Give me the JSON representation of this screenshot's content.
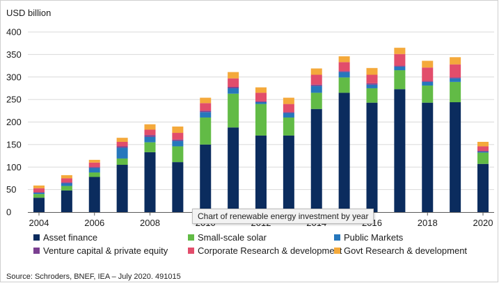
{
  "chart_data": {
    "type": "bar",
    "stacked": true,
    "ylabel": "USD billion",
    "xlabel": "",
    "ylim": [
      0,
      400
    ],
    "yticks": [
      0,
      50,
      100,
      150,
      200,
      250,
      300,
      350,
      400
    ],
    "categories": [
      "2004",
      "2005",
      "2006",
      "2007",
      "2008",
      "2009",
      "2010",
      "2011",
      "2012",
      "2013",
      "2014",
      "2015",
      "2016",
      "2017",
      "2018",
      "2019",
      "2020"
    ],
    "x_tick_labels": [
      "2004",
      "",
      "2006",
      "",
      "2008",
      "",
      "2010",
      "",
      "2012",
      "",
      "2014",
      "",
      "2016",
      "",
      "2018",
      "",
      "2020"
    ],
    "series": [
      {
        "name": "Asset finance",
        "color": "#0b2c5e",
        "values": [
          32,
          48,
          78,
          105,
          133,
          111,
          150,
          188,
          170,
          170,
          229,
          265,
          243,
          273,
          243,
          244,
          107
        ]
      },
      {
        "name": "Small-scale solar",
        "color": "#62bb46",
        "values": [
          8,
          10,
          10,
          14,
          22,
          35,
          60,
          75,
          70,
          40,
          36,
          34,
          32,
          42,
          38,
          45,
          25
        ]
      },
      {
        "name": "Public Markets",
        "color": "#2677bc",
        "values": [
          3,
          6,
          10,
          24,
          12,
          12,
          12,
          12,
          4,
          10,
          15,
          12,
          8,
          8,
          8,
          8,
          2
        ]
      },
      {
        "name": "Venture capital & private equity",
        "color": "#7b3f91",
        "values": [
          1,
          2,
          2,
          3,
          4,
          3,
          3,
          3,
          2,
          2,
          3,
          2,
          3,
          2,
          2,
          2,
          2
        ]
      },
      {
        "name": "Corporate Research & development",
        "color": "#e24d6b",
        "values": [
          9,
          9,
          10,
          10,
          12,
          15,
          17,
          19,
          19,
          18,
          22,
          20,
          19,
          26,
          30,
          29,
          10
        ]
      },
      {
        "name": "Govt Research & development",
        "color": "#f4a93b",
        "values": [
          6,
          7,
          6,
          9,
          12,
          14,
          12,
          14,
          12,
          14,
          14,
          13,
          15,
          14,
          15,
          16,
          10
        ]
      }
    ]
  },
  "tooltip": "Chart of renewable energy investment by year",
  "source": "Source: Schroders, BNEF, IEA – July 2020. 491015"
}
